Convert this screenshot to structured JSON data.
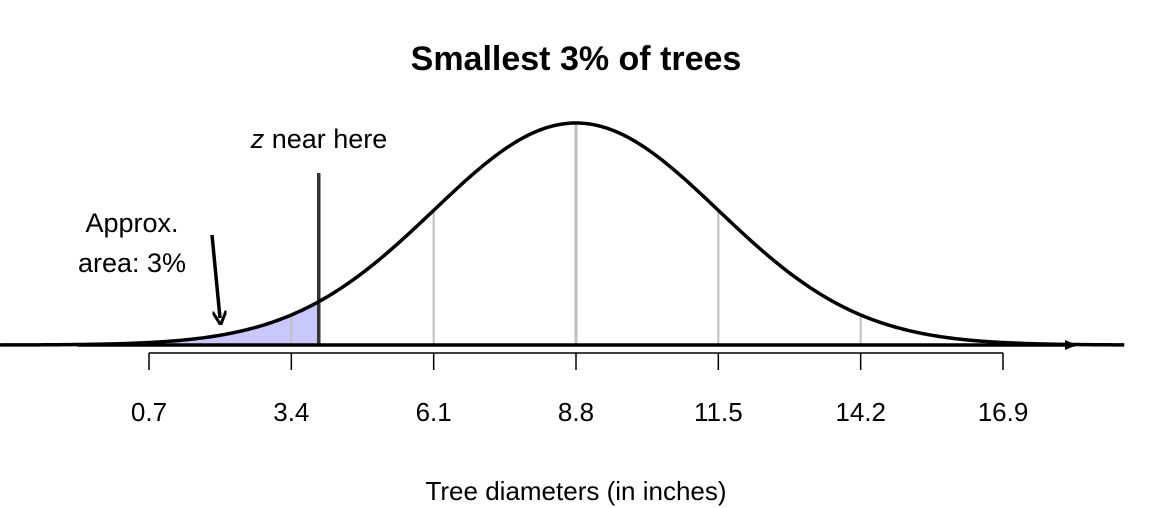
{
  "chart_data": {
    "type": "area",
    "title": "Smallest 3% of trees",
    "xlabel": "Tree diameters (in inches)",
    "ylabel": "",
    "distribution": "normal",
    "mean": 8.8,
    "sd": 2.7,
    "x_ticks": [
      "0.7",
      "3.4",
      "6.1",
      "8.8",
      "11.5",
      "14.2",
      "16.9"
    ],
    "x_tick_values": [
      0.7,
      3.4,
      6.1,
      8.8,
      11.5,
      14.2,
      16.9
    ],
    "xlim": [
      -2.8,
      19.2
    ],
    "shaded_region": {
      "from": -2.8,
      "to": 3.92,
      "fill": "#c8c8ff"
    },
    "marker_line": {
      "x": 3.92
    },
    "annotations": {
      "z_text": "z",
      "z_rest": " near here",
      "area_line1": "Approx.",
      "area_line2": "area: 3%"
    },
    "colors": {
      "curve": "#000000",
      "reference_lines": "#bfbfbf",
      "marker": "#333333",
      "shade": "#c8c8ff"
    }
  }
}
